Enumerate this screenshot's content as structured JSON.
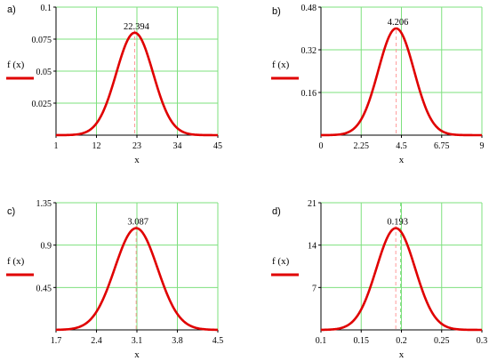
{
  "colors": {
    "curve": "#e00000",
    "grid": "#7ee07e",
    "marker": "#ff9a9a",
    "marker_alt": "#7ee07e",
    "axis": "#000000"
  },
  "chart_data": [
    {
      "type": "line",
      "panel": "a)",
      "xlabel": "x",
      "ylabel": "f (x)",
      "xlim": [
        1,
        45
      ],
      "ylim": [
        0,
        0.1
      ],
      "xticks": [
        1,
        12,
        23,
        34,
        45
      ],
      "xtick_labels": [
        "1",
        "12",
        "23",
        "34",
        "45"
      ],
      "yticks": [
        0.025,
        0.05,
        0.075,
        0.1
      ],
      "ytick_labels": [
        "0.025",
        "0.05",
        "0.075",
        "0.1"
      ],
      "grid": true,
      "legend_position": "left",
      "series": [
        {
          "curve": "gaussian",
          "mean": 22.394,
          "sd": 5.0,
          "peak": 0.08
        }
      ],
      "annotation": "22.394",
      "marker_x": 22.394,
      "series_x": [
        1,
        8,
        12,
        15,
        18,
        20,
        21.4,
        22.394,
        24,
        26,
        28,
        30,
        33,
        37,
        45
      ],
      "series_y": [
        0.0,
        0.0014,
        0.0088,
        0.0255,
        0.054,
        0.0711,
        0.0784,
        0.08,
        0.0757,
        0.0618,
        0.0427,
        0.025,
        0.0098,
        0.0015,
        0.0
      ]
    },
    {
      "type": "line",
      "panel": "b)",
      "xlabel": "x",
      "ylabel": "f (x)",
      "xlim": [
        0,
        9
      ],
      "ylim": [
        0,
        0.48
      ],
      "xticks": [
        0,
        2.25,
        4.5,
        6.75,
        9
      ],
      "xtick_labels": [
        "0",
        "2.25",
        "4.5",
        "6.75",
        "9"
      ],
      "yticks": [
        0.16,
        0.32,
        0.48
      ],
      "ytick_labels": [
        "0.16",
        "0.32",
        "0.48"
      ],
      "grid": true,
      "legend_position": "left",
      "series": [
        {
          "curve": "gaussian",
          "mean": 4.206,
          "sd": 1.0,
          "peak": 0.4
        }
      ],
      "annotation": "4.206",
      "marker_x": 4.206,
      "series_x": [
        0,
        1.2,
        2.0,
        2.6,
        3.2,
        3.7,
        4.206,
        4.7,
        5.2,
        5.8,
        6.4,
        7.2,
        9
      ],
      "series_y": [
        0.0,
        0.0044,
        0.0353,
        0.111,
        0.2418,
        0.3521,
        0.4,
        0.354,
        0.2443,
        0.113,
        0.036,
        0.0045,
        0.0
      ]
    },
    {
      "type": "line",
      "panel": "c)",
      "xlabel": "x",
      "ylabel": "f (x)",
      "xlim": [
        1.7,
        4.5
      ],
      "ylim": [
        0,
        1.35
      ],
      "xticks": [
        1.7,
        2.4,
        3.1,
        3.8,
        4.5
      ],
      "xtick_labels": [
        "1.7",
        "2.4",
        "3.1",
        "3.8",
        "4.5"
      ],
      "yticks": [
        0.45,
        0.9,
        1.35
      ],
      "ytick_labels": [
        "0.45",
        "0.9",
        "1.35"
      ],
      "grid": true,
      "legend_position": "left",
      "series": [
        {
          "curve": "gaussian",
          "mean": 3.087,
          "sd": 0.37,
          "peak": 1.08
        }
      ],
      "annotation": "3.087",
      "marker_x": 3.087,
      "series_x": [
        1.7,
        2.1,
        2.4,
        2.6,
        2.8,
        2.95,
        3.087,
        3.25,
        3.45,
        3.7,
        4.0,
        4.5
      ],
      "series_y": [
        0.0,
        0.031,
        0.194,
        0.453,
        0.81,
        1.012,
        1.08,
        0.97,
        0.664,
        0.273,
        0.052,
        0.0
      ]
    },
    {
      "type": "line",
      "panel": "d)",
      "xlabel": "x",
      "ylabel": "f (x)",
      "xlim": [
        0.1,
        0.3
      ],
      "ylim": [
        0,
        21
      ],
      "xticks": [
        0.1,
        0.15,
        0.2,
        0.25,
        0.3
      ],
      "xtick_labels": [
        "0.1",
        "0.15",
        "0.2",
        "0.25",
        "0.3"
      ],
      "yticks": [
        7,
        14,
        21
      ],
      "ytick_labels": [
        "7",
        "14",
        "21"
      ],
      "grid": true,
      "legend_position": "left",
      "series": [
        {
          "curve": "gaussian",
          "mean": 0.193,
          "sd": 0.024,
          "peak": 16.8
        }
      ],
      "annotation": "0.193",
      "marker_x": 0.193,
      "marker_x2": 0.199,
      "series_x": [
        0.1,
        0.13,
        0.15,
        0.165,
        0.18,
        0.188,
        0.193,
        0.2,
        0.21,
        0.225,
        0.245,
        0.27,
        0.3
      ],
      "series_y": [
        0.0,
        0.53,
        3.4,
        8.0,
        14.2,
        16.4,
        16.8,
        16.1,
        13.2,
        7.2,
        1.8,
        0.2,
        0.0
      ]
    }
  ]
}
